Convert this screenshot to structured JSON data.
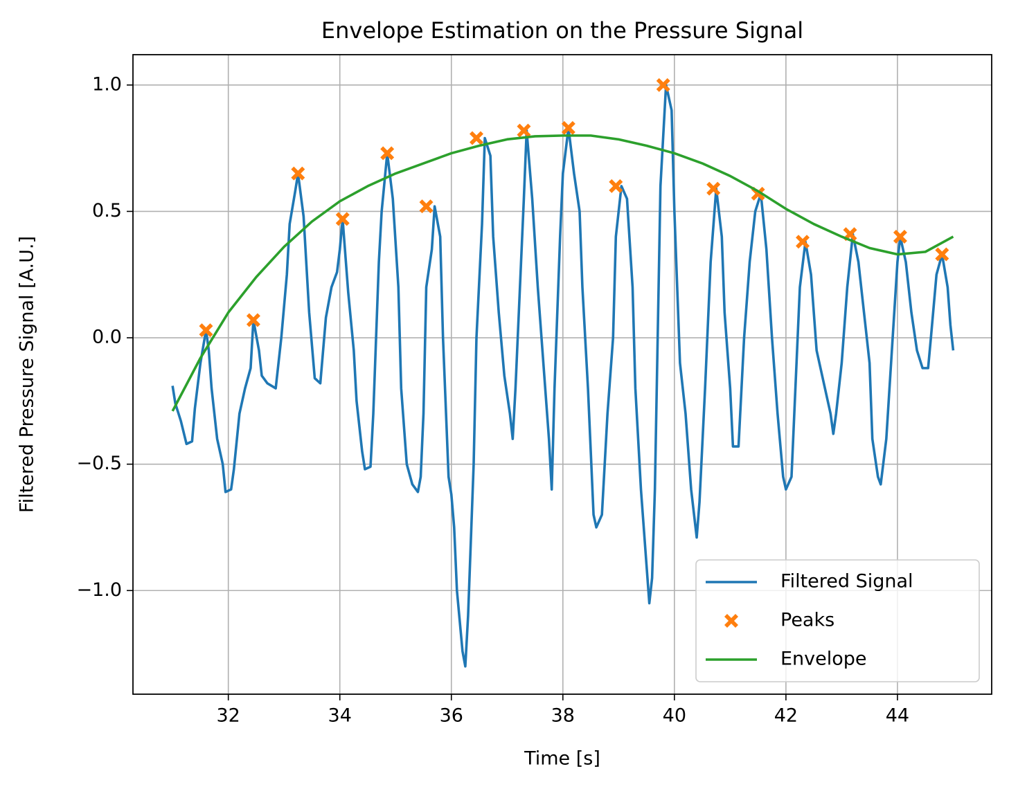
{
  "chart_data": {
    "type": "line",
    "title": "Envelope Estimation on the Pressure Signal",
    "x_label": "Time [s]",
    "y_label": "Filtered Pressure Signal [A.U.]",
    "xlim": [
      30.29,
      45.69
    ],
    "ylim": [
      -1.41,
      1.12
    ],
    "xticks": [
      32,
      34,
      36,
      38,
      40,
      42,
      44
    ],
    "yticks": [
      {
        "value": -1.0,
        "label": "−1.0"
      },
      {
        "value": -0.5,
        "label": "−0.5"
      },
      {
        "value": 0.0,
        "label": "0.0"
      },
      {
        "value": 0.5,
        "label": "0.5"
      },
      {
        "value": 1.0,
        "label": "1.0"
      }
    ],
    "grid": true,
    "legend_loc": "lower right",
    "series": [
      {
        "name": "Filtered Signal",
        "color": "#1f77b4",
        "x": [
          31.0,
          31.05,
          31.15,
          31.25,
          31.35,
          31.4,
          31.5,
          31.6,
          31.65,
          31.7,
          31.8,
          31.9,
          31.95,
          32.05,
          32.1,
          32.2,
          32.3,
          32.4,
          32.45,
          32.55,
          32.6,
          32.7,
          32.85,
          32.95,
          33.05,
          33.1,
          33.2,
          33.25,
          33.35,
          33.45,
          33.55,
          33.65,
          33.75,
          33.85,
          33.95,
          34.0,
          34.05,
          34.15,
          34.25,
          34.3,
          34.4,
          34.45,
          34.55,
          34.6,
          34.65,
          34.7,
          34.75,
          34.85,
          34.95,
          35.05,
          35.1,
          35.2,
          35.3,
          35.4,
          35.45,
          35.5,
          35.55,
          35.65,
          35.7,
          35.8,
          35.85,
          35.95,
          36.0,
          36.05,
          36.1,
          36.2,
          36.25,
          36.3,
          36.35,
          36.4,
          36.45,
          36.55,
          36.6,
          36.7,
          36.75,
          36.85,
          36.95,
          37.05,
          37.1,
          37.15,
          37.25,
          37.3,
          37.35,
          37.45,
          37.55,
          37.65,
          37.75,
          37.8,
          37.85,
          37.95,
          38.0,
          38.1,
          38.2,
          38.3,
          38.35,
          38.45,
          38.55,
          38.6,
          38.7,
          38.8,
          38.9,
          38.95,
          39.05,
          39.15,
          39.25,
          39.3,
          39.4,
          39.5,
          39.55,
          39.6,
          39.65,
          39.7,
          39.75,
          39.85,
          39.95,
          40.0,
          40.05,
          40.1,
          40.2,
          40.3,
          40.4,
          40.45,
          40.55,
          40.65,
          40.75,
          40.85,
          40.9,
          41.0,
          41.05,
          41.15,
          41.25,
          41.35,
          41.45,
          41.55,
          41.65,
          41.75,
          41.85,
          41.95,
          42.0,
          42.1,
          42.15,
          42.25,
          42.35,
          42.45,
          42.55,
          42.7,
          42.8,
          42.85,
          42.9,
          43.0,
          43.1,
          43.2,
          43.3,
          43.4,
          43.5,
          43.55,
          43.65,
          43.7,
          43.8,
          43.9,
          44.0,
          44.05,
          44.15,
          44.25,
          44.35,
          44.45,
          44.55,
          44.6,
          44.7,
          44.8,
          44.9,
          44.95,
          45.0
        ],
        "values": [
          -0.19,
          -0.26,
          -0.33,
          -0.42,
          -0.41,
          -0.28,
          -0.1,
          0.03,
          -0.05,
          -0.2,
          -0.4,
          -0.5,
          -0.61,
          -0.6,
          -0.52,
          -0.3,
          -0.2,
          -0.12,
          0.07,
          -0.05,
          -0.15,
          -0.18,
          -0.2,
          0.0,
          0.25,
          0.45,
          0.58,
          0.65,
          0.48,
          0.1,
          -0.16,
          -0.18,
          0.08,
          0.2,
          0.26,
          0.35,
          0.47,
          0.18,
          -0.05,
          -0.25,
          -0.45,
          -0.52,
          -0.51,
          -0.3,
          0.0,
          0.3,
          0.5,
          0.73,
          0.55,
          0.2,
          -0.2,
          -0.5,
          -0.58,
          -0.61,
          -0.55,
          -0.3,
          0.2,
          0.35,
          0.52,
          0.4,
          0.0,
          -0.55,
          -0.62,
          -0.75,
          -1.0,
          -1.24,
          -1.3,
          -1.1,
          -0.8,
          -0.5,
          0.0,
          0.45,
          0.79,
          0.72,
          0.4,
          0.1,
          -0.15,
          -0.3,
          -0.4,
          -0.2,
          0.3,
          0.55,
          0.82,
          0.55,
          0.2,
          -0.1,
          -0.4,
          -0.6,
          -0.2,
          0.4,
          0.65,
          0.83,
          0.65,
          0.5,
          0.2,
          -0.2,
          -0.7,
          -0.75,
          -0.7,
          -0.3,
          0.0,
          0.4,
          0.6,
          0.55,
          0.2,
          -0.2,
          -0.6,
          -0.9,
          -1.05,
          -0.95,
          -0.6,
          0.0,
          0.6,
          1.0,
          0.9,
          0.5,
          0.2,
          -0.1,
          -0.3,
          -0.6,
          -0.79,
          -0.65,
          -0.2,
          0.3,
          0.59,
          0.4,
          0.1,
          -0.2,
          -0.43,
          -0.43,
          0.0,
          0.3,
          0.5,
          0.57,
          0.35,
          0.0,
          -0.3,
          -0.55,
          -0.6,
          -0.55,
          -0.3,
          0.2,
          0.38,
          0.25,
          -0.05,
          -0.2,
          -0.3,
          -0.38,
          -0.3,
          -0.1,
          0.2,
          0.41,
          0.3,
          0.1,
          -0.1,
          -0.4,
          -0.55,
          -0.58,
          -0.4,
          -0.05,
          0.3,
          0.4,
          0.3,
          0.1,
          -0.05,
          -0.12,
          -0.12,
          0.0,
          0.25,
          0.33,
          0.2,
          0.05,
          -0.05
        ]
      },
      {
        "name": "Peaks",
        "color": "#ff7f0e",
        "marker": "X",
        "x": [
          31.6,
          32.45,
          33.25,
          34.05,
          34.85,
          35.55,
          36.45,
          37.3,
          38.1,
          38.95,
          39.8,
          40.7,
          41.5,
          42.3,
          43.15,
          44.05,
          44.8
        ],
        "values": [
          0.03,
          0.07,
          0.65,
          0.47,
          0.73,
          0.52,
          0.79,
          0.82,
          0.83,
          0.6,
          1.0,
          0.59,
          0.57,
          0.38,
          0.41,
          0.4,
          0.33
        ]
      },
      {
        "name": "Envelope",
        "color": "#2ca02c",
        "x": [
          31.0,
          31.5,
          32.0,
          32.5,
          33.0,
          33.5,
          34.0,
          34.5,
          35.0,
          35.5,
          36.0,
          36.5,
          37.0,
          37.5,
          38.0,
          38.5,
          39.0,
          39.5,
          40.0,
          40.5,
          41.0,
          41.5,
          42.0,
          42.5,
          43.0,
          43.5,
          44.0,
          44.5,
          45.0
        ],
        "values": [
          -0.29,
          -0.08,
          0.1,
          0.24,
          0.36,
          0.46,
          0.54,
          0.6,
          0.65,
          0.69,
          0.73,
          0.76,
          0.785,
          0.797,
          0.8,
          0.8,
          0.785,
          0.76,
          0.73,
          0.69,
          0.64,
          0.58,
          0.51,
          0.45,
          0.4,
          0.355,
          0.33,
          0.34,
          0.4
        ]
      }
    ]
  }
}
